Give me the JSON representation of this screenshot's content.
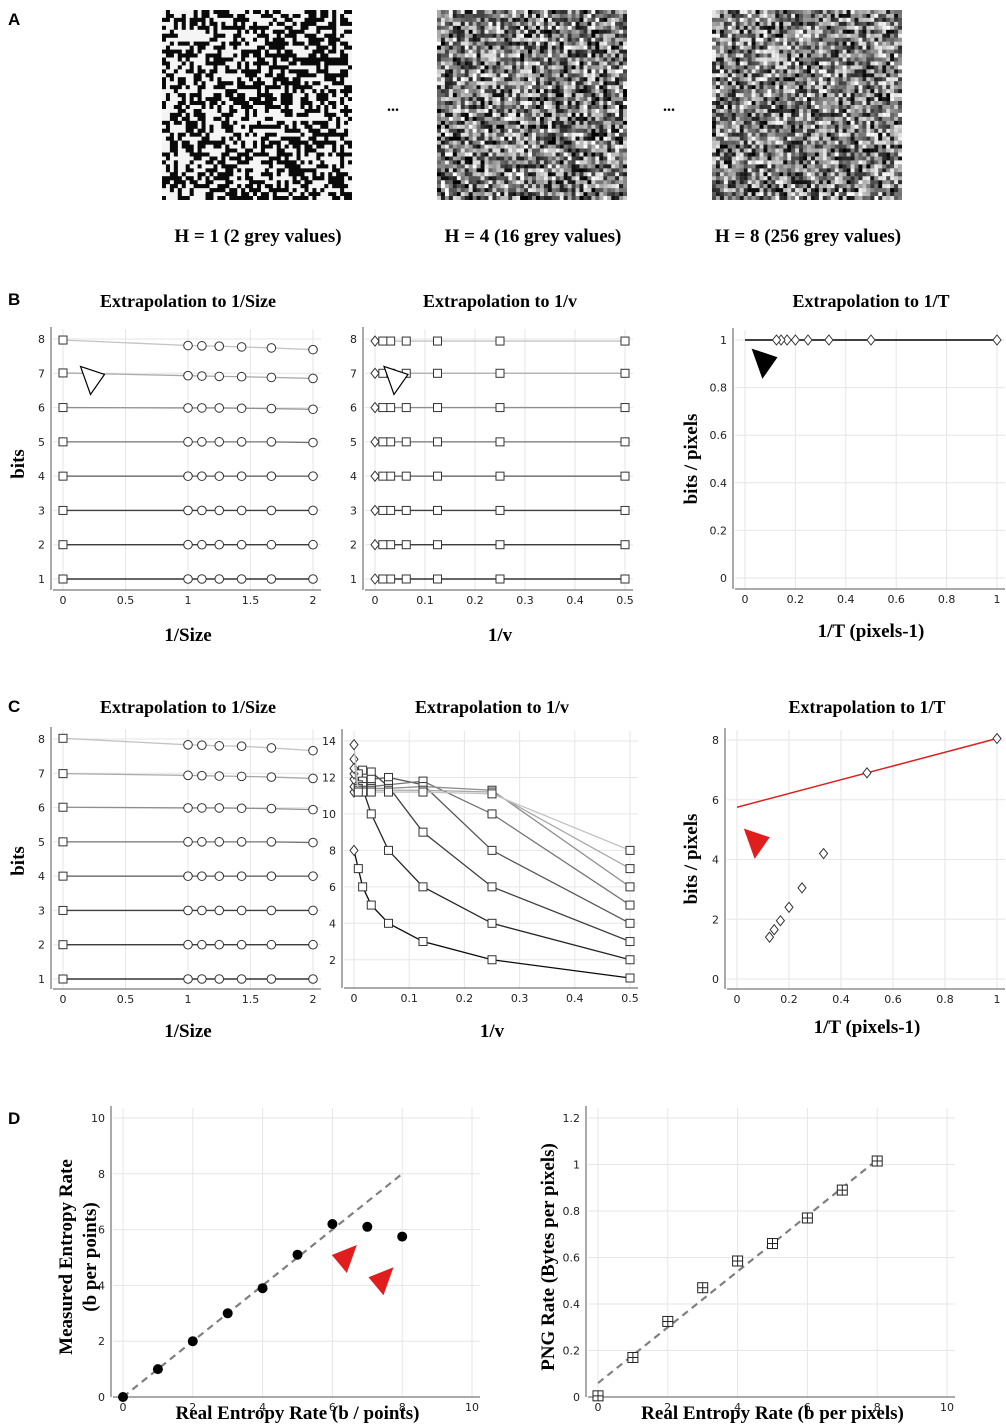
{
  "panel_letters": {
    "a": "A",
    "b": "B",
    "c": "C",
    "d": "D"
  },
  "noise_images": [
    {
      "caption": "H = 1 (2 grey values)",
      "levels": 2
    },
    {
      "caption": "H = 4 (16 grey values)",
      "levels": 16
    },
    {
      "caption": "H = 8 (256 grey values)",
      "levels": 256
    }
  ],
  "ellipsis": "...",
  "colors": {
    "red": "#e01e1e",
    "black": "#000000",
    "dash": "#808080"
  },
  "icons": [
    "open-triangle-marker",
    "black-triangle-marker",
    "red-triangle-marker"
  ],
  "chart_data": [
    {
      "id": "b1",
      "type": "line",
      "title": "Extrapolation to 1/Size",
      "xlabel": "1/Size",
      "ylabel": "bits",
      "xlim": [
        0,
        2
      ],
      "ylim": [
        1,
        8
      ],
      "xticks": [
        "0",
        "0.5",
        "1",
        "1.5",
        "2"
      ],
      "yticks": [
        "1",
        "2",
        "3",
        "4",
        "5",
        "6",
        "7",
        "8"
      ],
      "x": [
        1,
        1.111,
        1.25,
        1.429,
        1.667,
        2
      ],
      "series": [
        {
          "values": [
            1,
            1,
            1,
            1,
            1,
            1
          ],
          "extrapolated": 1
        },
        {
          "values": [
            2,
            2,
            2,
            2,
            2,
            2
          ],
          "extrapolated": 2
        },
        {
          "values": [
            3,
            3,
            3,
            3,
            3,
            3
          ],
          "extrapolated": 3
        },
        {
          "values": [
            4,
            4,
            4,
            4,
            4,
            4
          ],
          "extrapolated": 4
        },
        {
          "values": [
            5,
            5,
            5,
            5,
            5,
            4.98
          ],
          "extrapolated": 5
        },
        {
          "values": [
            5.99,
            5.99,
            5.99,
            5.98,
            5.97,
            5.95
          ],
          "extrapolated": 6
        },
        {
          "values": [
            6.93,
            6.92,
            6.91,
            6.9,
            6.88,
            6.85
          ],
          "extrapolated": 7.01
        },
        {
          "values": [
            7.81,
            7.8,
            7.79,
            7.77,
            7.74,
            7.69
          ],
          "extrapolated": 7.97
        }
      ],
      "marker": "open-triangle-marker"
    },
    {
      "id": "b2",
      "type": "line",
      "title": "Extrapolation to 1/v",
      "xlabel": "1/v",
      "ylabel": "",
      "xlim": [
        0,
        0.5
      ],
      "ylim": [
        1,
        8
      ],
      "xticks": [
        "0",
        "0.1",
        "0.2",
        "0.3",
        "0.4",
        "0.5"
      ],
      "yticks": [
        "1",
        "2",
        "3",
        "4",
        "5",
        "6",
        "7",
        "8"
      ],
      "x": [
        0.5,
        0.25,
        0.125,
        0.0625,
        0.03125,
        0.015625
      ],
      "series": [
        {
          "values": [
            1,
            1,
            1,
            1,
            1,
            1
          ],
          "extrapolated": 1
        },
        {
          "values": [
            2,
            2,
            2,
            2,
            2,
            2
          ],
          "extrapolated": 2
        },
        {
          "values": [
            3,
            3,
            3,
            3,
            3,
            3
          ],
          "extrapolated": 3
        },
        {
          "values": [
            4,
            4,
            4,
            4,
            4,
            4
          ],
          "extrapolated": 4
        },
        {
          "values": [
            5,
            5,
            5,
            5,
            5,
            5
          ],
          "extrapolated": 5
        },
        {
          "values": [
            6,
            6,
            6,
            6,
            6,
            6
          ],
          "extrapolated": 6
        },
        {
          "values": [
            7,
            7,
            7,
            7,
            7,
            7
          ],
          "extrapolated": 7
        },
        {
          "values": [
            7.94,
            7.94,
            7.94,
            7.94,
            7.94,
            7.94
          ],
          "extrapolated": 7.94
        }
      ],
      "marker": "open-triangle-marker"
    },
    {
      "id": "b3",
      "type": "line",
      "title": "Extrapolation to 1/T",
      "xlabel": "1/T (pixels-1)",
      "ylabel": "bits / pixels",
      "xlim": [
        0,
        1
      ],
      "ylim": [
        0,
        1
      ],
      "xticks": [
        "0",
        "0.2",
        "0.4",
        "0.6",
        "0.8",
        "1"
      ],
      "yticks": [
        "0",
        "0.2",
        "0.4",
        "0.6",
        "0.8",
        "1"
      ],
      "points": {
        "x": [
          1,
          0.5,
          0.333,
          0.25,
          0.2,
          0.167,
          0.143,
          0.125
        ],
        "y": [
          1,
          1,
          1,
          1,
          1,
          1,
          1,
          1
        ]
      },
      "fit": {
        "x": [
          0,
          1
        ],
        "y": [
          1,
          1
        ],
        "color": "#000000"
      },
      "marker": "black-triangle-marker"
    },
    {
      "id": "c1",
      "type": "line",
      "title": "Extrapolation to 1/Size",
      "xlabel": "1/Size",
      "ylabel": "bits",
      "xlim": [
        0,
        2
      ],
      "ylim": [
        1,
        8
      ],
      "xticks": [
        "0",
        "0.5",
        "1",
        "1.5",
        "2"
      ],
      "yticks": [
        "1",
        "2",
        "3",
        "4",
        "5",
        "6",
        "7",
        "8"
      ],
      "x": [
        1,
        1.111,
        1.25,
        1.429,
        1.667,
        2
      ],
      "series": [
        {
          "values": [
            1,
            1,
            1,
            1,
            1,
            1
          ],
          "extrapolated": 1
        },
        {
          "values": [
            2,
            2,
            2,
            2,
            2,
            2
          ],
          "extrapolated": 2
        },
        {
          "values": [
            3,
            3,
            3,
            3,
            3,
            3
          ],
          "extrapolated": 3
        },
        {
          "values": [
            4,
            4,
            4,
            4,
            4,
            4
          ],
          "extrapolated": 4
        },
        {
          "values": [
            5,
            5,
            5,
            5,
            5,
            4.98
          ],
          "extrapolated": 5
        },
        {
          "values": [
            5.99,
            5.99,
            5.99,
            5.98,
            5.97,
            5.94
          ],
          "extrapolated": 6.01
        },
        {
          "values": [
            6.94,
            6.93,
            6.92,
            6.91,
            6.89,
            6.85
          ],
          "extrapolated": 6.99
        },
        {
          "values": [
            7.83,
            7.82,
            7.8,
            7.79,
            7.74,
            7.66
          ],
          "extrapolated": 8.02
        }
      ]
    },
    {
      "id": "c2",
      "type": "line",
      "title": "Extrapolation to 1/v",
      "xlabel": "1/v",
      "ylabel": "",
      "xlim": [
        0,
        0.5
      ],
      "ylim": [
        1,
        14
      ],
      "xticks": [
        "0",
        "0.1",
        "0.2",
        "0.3",
        "0.4",
        "0.5"
      ],
      "yticks": [
        "2",
        "4",
        "6",
        "8",
        "10",
        "12",
        "14"
      ],
      "x": [
        0.5,
        0.25,
        0.125,
        0.0625,
        0.03125,
        0.015625,
        0.0078125
      ],
      "series": [
        {
          "values": [
            1,
            2,
            3,
            4,
            5,
            6,
            7
          ],
          "extrapolated": 8.0
        },
        {
          "values": [
            2,
            4,
            6,
            8,
            10,
            11.4,
            12.0
          ],
          "extrapolated": 11.2
        },
        {
          "values": [
            3,
            6,
            9,
            11.5,
            12.3,
            12.4,
            12.2
          ],
          "extrapolated": 11.5
        },
        {
          "values": [
            4,
            8,
            11.6,
            12.0,
            11.9,
            11.8,
            11.6
          ],
          "extrapolated": 11.9
        },
        {
          "values": [
            5,
            10,
            11.8,
            11.6,
            11.5,
            11.5,
            11.4
          ],
          "extrapolated": 12.2
        },
        {
          "values": [
            6,
            11.3,
            11.5,
            11.4,
            11.4,
            11.3,
            11.3
          ],
          "extrapolated": 12.5
        },
        {
          "values": [
            7,
            11.2,
            11.3,
            11.3,
            11.3,
            11.2,
            11.2
          ],
          "extrapolated": 13.0
        },
        {
          "values": [
            8,
            11.1,
            11.2,
            11.2,
            11.2,
            11.2,
            11.2
          ],
          "extrapolated": 13.8
        }
      ]
    },
    {
      "id": "c3",
      "type": "scatter",
      "title": "Extrapolation to 1/T",
      "xlabel": "1/T (pixels-1)",
      "ylabel": "bits / pixels",
      "xlim": [
        0,
        1
      ],
      "ylim": [
        0,
        8
      ],
      "xticks": [
        "0",
        "0.2",
        "0.4",
        "0.6",
        "0.8",
        "1"
      ],
      "yticks": [
        "0",
        "2",
        "4",
        "6",
        "8"
      ],
      "points": {
        "x": [
          1,
          0.5,
          0.333,
          0.25,
          0.2,
          0.167,
          0.143,
          0.125
        ],
        "y": [
          8.05,
          6.9,
          4.2,
          3.05,
          2.4,
          1.95,
          1.65,
          1.4
        ]
      },
      "fit": {
        "x": [
          0,
          1
        ],
        "y": [
          5.75,
          8.05
        ],
        "color": "#e01e1e"
      },
      "marker": "red-triangle-marker"
    },
    {
      "id": "d1",
      "type": "scatter",
      "xlabel": "Real Entropy Rate (b / points)",
      "ylabel": "Measured Entropy Rate (b per points)",
      "xlim": [
        0,
        10
      ],
      "ylim": [
        0,
        10
      ],
      "xticks": [
        "0",
        "2",
        "4",
        "6",
        "8",
        "10"
      ],
      "yticks": [
        "0",
        "2",
        "4",
        "6",
        "8",
        "10"
      ],
      "points": {
        "x": [
          0,
          1,
          2,
          3,
          4,
          5,
          6,
          7,
          8
        ],
        "y": [
          0,
          1,
          2,
          3,
          3.9,
          5.1,
          6.2,
          6.1,
          5.75
        ]
      },
      "dashed": {
        "x": [
          0,
          8
        ],
        "y": [
          0,
          8
        ]
      },
      "marker": "red-triangle-marker"
    },
    {
      "id": "d2",
      "type": "scatter",
      "xlabel": "Real Entropy Rate (b per pixels)",
      "ylabel": "PNG Rate (Bytes per pixels)",
      "xlim": [
        0,
        10
      ],
      "ylim": [
        0,
        1.2
      ],
      "xticks": [
        "0",
        "2",
        "4",
        "6",
        "8",
        "10"
      ],
      "yticks": [
        "0",
        "0.2",
        "0.4",
        "0.6",
        "0.8",
        "1",
        "1.2"
      ],
      "points": {
        "x": [
          0,
          1,
          2,
          3,
          4,
          5,
          6,
          7,
          8
        ],
        "y": [
          0.005,
          0.17,
          0.325,
          0.47,
          0.585,
          0.66,
          0.77,
          0.89,
          1.015
        ]
      },
      "dashed": {
        "x": [
          0,
          8
        ],
        "y": [
          0.06,
          1.02
        ]
      }
    }
  ]
}
